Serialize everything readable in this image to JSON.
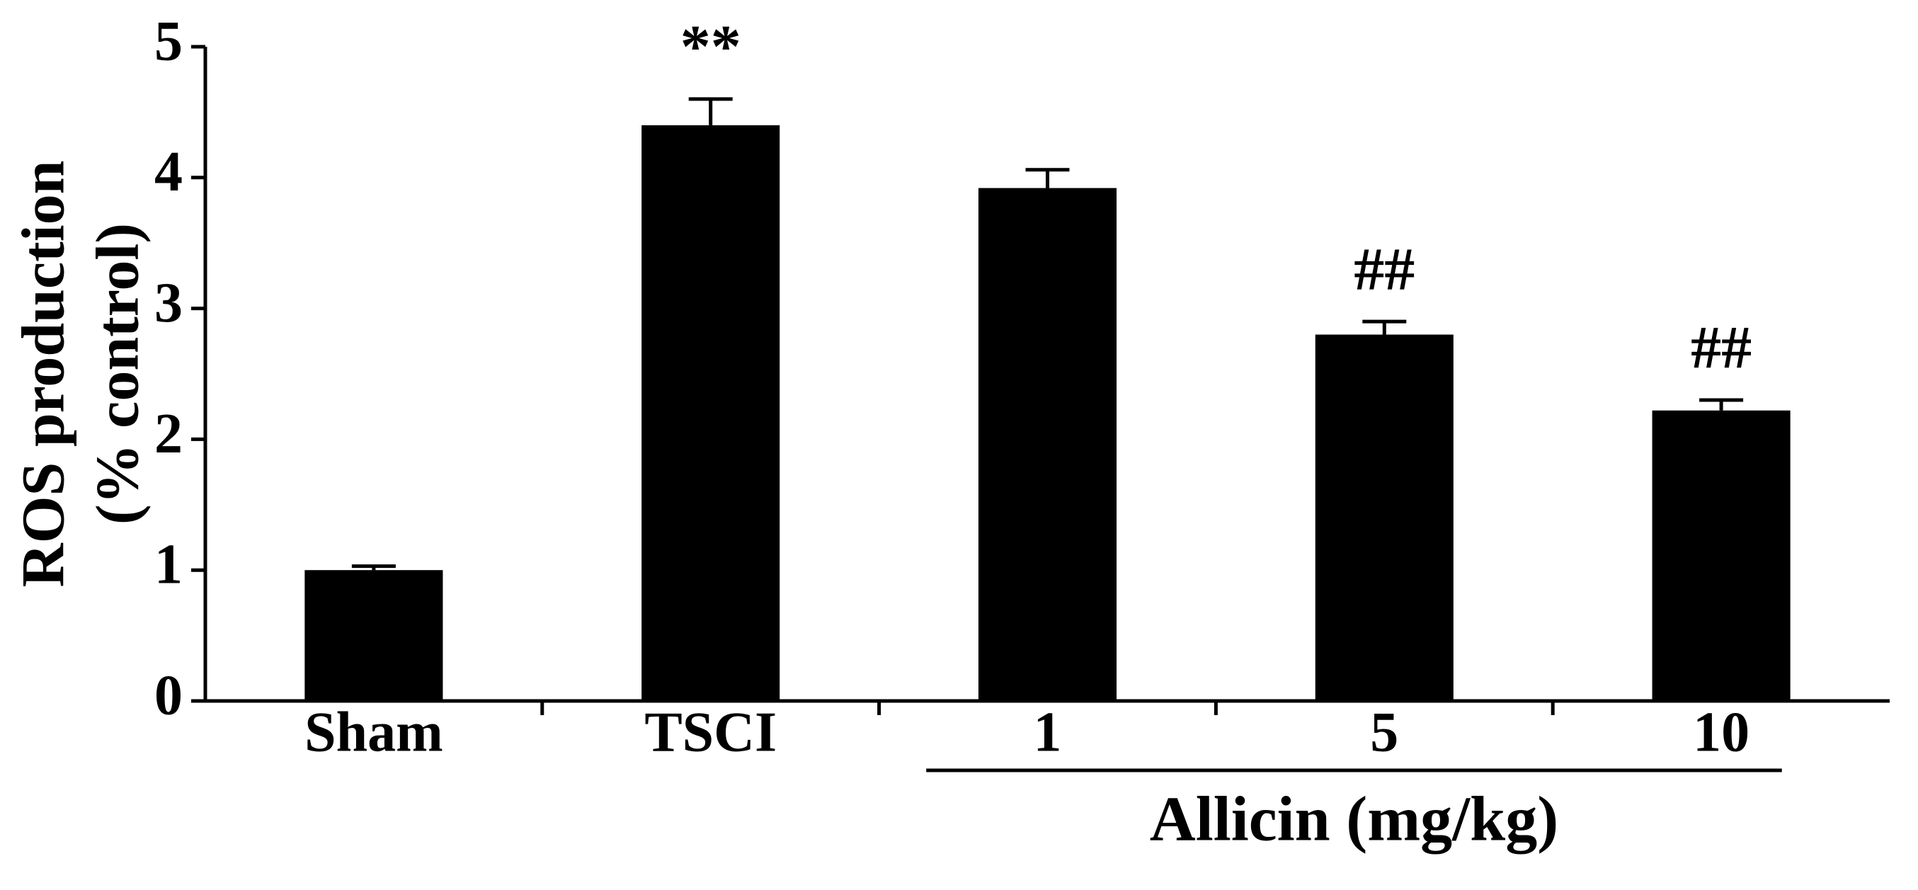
{
  "chart_data": {
    "type": "bar",
    "ylabel": [
      "ROS production",
      "(% control)"
    ],
    "categories": [
      "Sham",
      "TSCI",
      "1",
      "5",
      "10"
    ],
    "values": [
      1.0,
      4.4,
      3.92,
      2.8,
      2.22
    ],
    "errors": [
      0.03,
      0.2,
      0.14,
      0.1,
      0.08
    ],
    "color": "#000000",
    "ylim": [
      0,
      5
    ],
    "yticks": [
      0,
      1,
      2,
      3,
      4,
      5
    ],
    "annotations": [
      {
        "text": "**",
        "category": "TSCI"
      },
      {
        "text": "##",
        "category": "5"
      },
      {
        "text": "##",
        "category": "10"
      }
    ],
    "group_label": {
      "text": "Allicin (mg/kg)",
      "from": "1",
      "to": "10"
    }
  }
}
